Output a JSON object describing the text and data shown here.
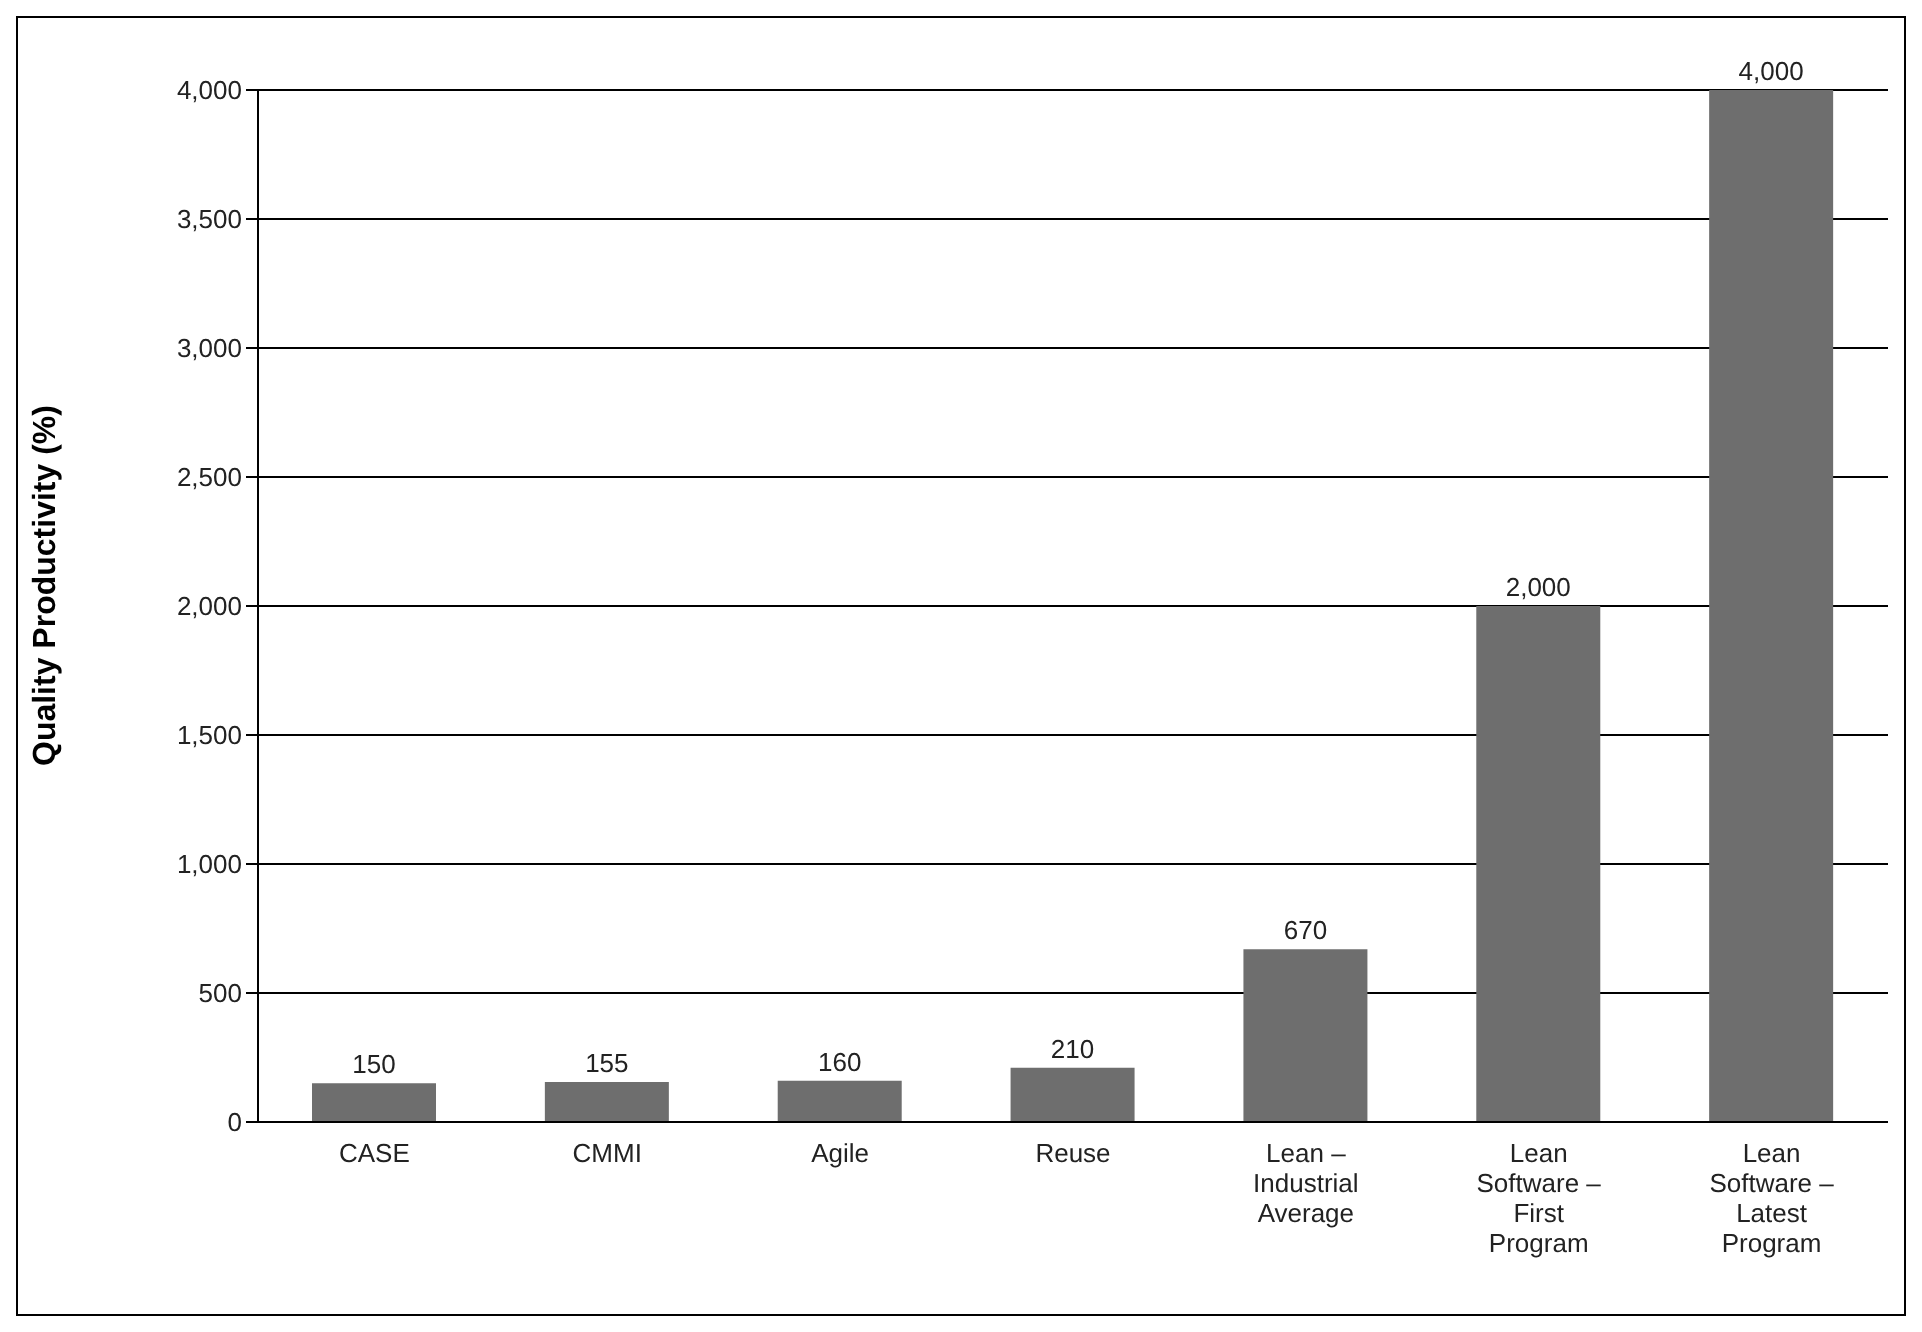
{
  "chart_data": {
    "type": "bar",
    "ylabel": "Quality Productivity (%)",
    "categories": [
      "CASE",
      "CMMI",
      "Agile",
      "Reuse",
      "Lean – Industrial Average",
      "Lean Software – First Program",
      "Lean Software – Latest Program"
    ],
    "values": [
      150,
      155,
      160,
      210,
      670,
      2000,
      4000
    ],
    "value_labels": [
      "150",
      "155",
      "160",
      "210",
      "670",
      "2,000",
      "4,000"
    ],
    "color": "#6e6e6e",
    "ylim": [
      0,
      4000
    ],
    "yticks": [
      0,
      500,
      {
        "value": 1000,
        "label": "1,000"
      },
      {
        "value": 1500,
        "label": "1,500"
      },
      {
        "value": 2000,
        "label": "2,000"
      },
      {
        "value": 2500,
        "label": "2,500"
      },
      {
        "value": 3000,
        "label": "3,000"
      },
      {
        "value": 3500,
        "label": "3,500"
      },
      {
        "value": 4000,
        "label": "4,000"
      }
    ],
    "grid": "y"
  }
}
